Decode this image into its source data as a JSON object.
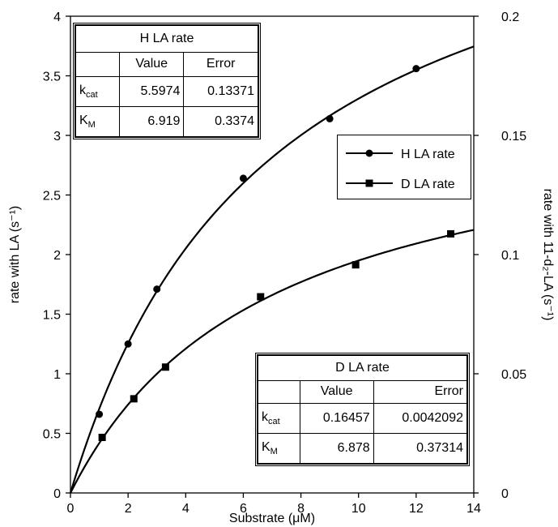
{
  "chart_data": {
    "type": "scatter",
    "xlabel": "Substrate (μM)",
    "ylabel_left": "rate with LA (s⁻¹)",
    "ylabel_right": "rate with 11-d₂-LA (s⁻¹)",
    "xlim": [
      0,
      14
    ],
    "ylim_left": [
      0,
      4
    ],
    "ylim_right": [
      0,
      0.2
    ],
    "x_ticks": [
      "0",
      "2",
      "4",
      "6",
      "8",
      "10",
      "12",
      "14"
    ],
    "y_left_ticks": [
      "0",
      "0.5",
      "1",
      "1.5",
      "2",
      "2.5",
      "3",
      "3.5",
      "4"
    ],
    "y_right_ticks": [
      "0",
      "0.05",
      "0.1",
      "0.15",
      "0.2"
    ],
    "grid": false,
    "legend_position": "right",
    "series": [
      {
        "name": "H LA rate",
        "axis": "left",
        "marker": "circle",
        "x": [
          1,
          2,
          3,
          6,
          9,
          12
        ],
        "y": [
          0.66,
          1.25,
          1.71,
          2.64,
          3.14,
          3.56
        ],
        "fit": {
          "kcat": 5.5974,
          "KM": 6.919
        }
      },
      {
        "name": "D LA rate",
        "axis": "right",
        "marker": "square",
        "x": [
          1.1,
          2.2,
          3.3,
          6.6,
          9.9,
          13.2
        ],
        "y": [
          0.0233,
          0.0395,
          0.0528,
          0.0823,
          0.0957,
          0.1087
        ],
        "fit": {
          "kcat": 0.16457,
          "KM": 6.878
        }
      }
    ]
  },
  "legend": {
    "items": [
      {
        "label": "H LA rate"
      },
      {
        "label": "D LA rate"
      }
    ]
  },
  "table_h": {
    "title": "H LA rate",
    "col_value": "Value",
    "col_error": "Error",
    "kcat_sym": "k",
    "kcat_sub": "cat",
    "kcat_value": "5.5974",
    "kcat_error": "0.13371",
    "km_sym": "K",
    "km_sub": "M",
    "km_value": "6.919",
    "km_error": "0.3374"
  },
  "table_d": {
    "title": "D LA rate",
    "col_value": "Value",
    "col_error": "Error",
    "kcat_sym": "k",
    "kcat_sub": "cat",
    "kcat_value": "0.16457",
    "kcat_error": "0.0042092",
    "km_sym": "K",
    "km_sub": "M",
    "km_value": "6.878",
    "km_error": "0.37314"
  }
}
